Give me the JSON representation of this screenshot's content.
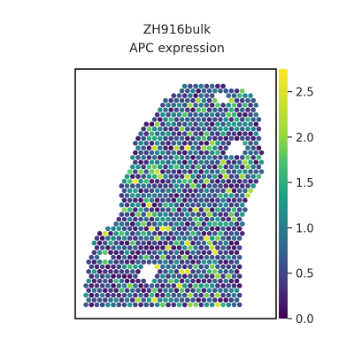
{
  "chart_data": {
    "type": "heatmap",
    "title": "ZH916bulk",
    "subtitle": "APC expression",
    "xlabel": "",
    "ylabel": "",
    "colormap": "viridis",
    "colorbar": {
      "range": [
        0.0,
        2.75
      ],
      "ticks": [
        0.0,
        0.5,
        1.0,
        1.5,
        2.0,
        2.5
      ],
      "tick_labels": [
        "0.0",
        "0.5",
        "1.0",
        "1.5",
        "2.0",
        "2.5"
      ]
    },
    "spots": {
      "description": "Spatial transcriptomics spots (hexagonal grid) colored by APC expression",
      "typical_value": 0.6,
      "value_range": [
        0.0,
        2.75
      ]
    }
  }
}
